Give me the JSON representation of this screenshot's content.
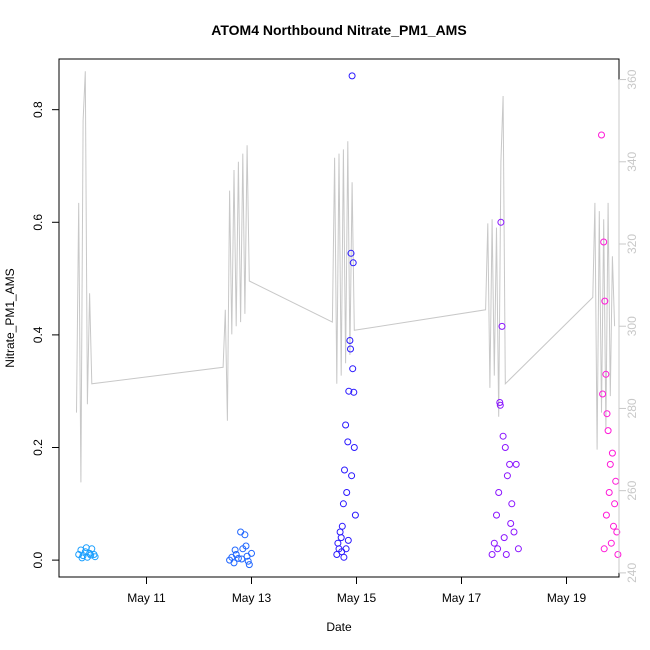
{
  "chart_data": {
    "type": "scatter",
    "title": "ATOM4 Northbound Nitrate_PM1_AMS",
    "xlabel": "Date",
    "ylabel": "Nitrate_PM1_AMS",
    "x_unit": "days",
    "xlim": [
      "2018-05-09T08:00",
      "2018-05-20T00:00"
    ],
    "x_ticks": [
      "May 11",
      "May 13",
      "May 15",
      "May 17",
      "May 19"
    ],
    "x_tick_values": [
      "2018-05-11",
      "2018-05-13",
      "2018-05-15",
      "2018-05-17",
      "2018-05-19"
    ],
    "ylim": [
      -0.03,
      0.89
    ],
    "y_ticks": [
      0.0,
      0.2,
      0.4,
      0.6,
      0.8
    ],
    "y_tick_labels": [
      "0.0",
      "0.2",
      "0.4",
      "0.6",
      "0.8"
    ],
    "y2lim": [
      239,
      365
    ],
    "y2_ticks": [
      240,
      260,
      280,
      300,
      320,
      340,
      360
    ],
    "y2_tick_labels": [
      "240",
      "260",
      "280",
      "300",
      "320",
      "340",
      "360"
    ],
    "grid": false,
    "colors": {
      "flight1": "#1a9fff",
      "flight2": "#1f66ff",
      "flight3": "#2a18ff",
      "flight4": "#8a14ff",
      "flight5": "#ff18d8",
      "secondary_line": "#c8c8c8",
      "secondary_axis": "#c8c8c8"
    },
    "series": [
      {
        "color": "#1a9fff",
        "points": [
          [
            "2018-05-09T17:00",
            0.01
          ],
          [
            "2018-05-09T18:00",
            0.018
          ],
          [
            "2018-05-09T19:00",
            0.008
          ],
          [
            "2018-05-09T20:00",
            0.015
          ],
          [
            "2018-05-09T21:00",
            0.005
          ],
          [
            "2018-05-09T22:00",
            0.012
          ],
          [
            "2018-05-09T23:00",
            0.02
          ],
          [
            "2018-05-10T00:00",
            0.01
          ],
          [
            "2018-05-10T00:30",
            0.006
          ],
          [
            "2018-05-09T18:30",
            0.004
          ],
          [
            "2018-05-09T20:30",
            0.022
          ],
          [
            "2018-05-09T22:30",
            0.009
          ]
        ]
      },
      {
        "color": "#1f66ff",
        "points": [
          [
            "2018-05-12T14:00",
            0.0
          ],
          [
            "2018-05-12T15:00",
            0.005
          ],
          [
            "2018-05-12T16:00",
            -0.005
          ],
          [
            "2018-05-12T17:00",
            0.01
          ],
          [
            "2018-05-12T18:00",
            0.003
          ],
          [
            "2018-05-12T19:00",
            0.05
          ],
          [
            "2018-05-12T20:00",
            0.02
          ],
          [
            "2018-05-12T21:00",
            0.045
          ],
          [
            "2018-05-12T22:00",
            0.007
          ],
          [
            "2018-05-12T23:00",
            -0.008
          ],
          [
            "2018-05-13T00:00",
            0.012
          ],
          [
            "2018-05-12T19:30",
            0.002
          ],
          [
            "2018-05-12T21:30",
            0.025
          ],
          [
            "2018-05-12T16:30",
            0.018
          ],
          [
            "2018-05-12T22:30",
            -0.002
          ]
        ]
      },
      {
        "color": "#2a18ff",
        "points": [
          [
            "2018-05-14T15:00",
            0.01
          ],
          [
            "2018-05-14T15:30",
            0.03
          ],
          [
            "2018-05-14T16:00",
            0.02
          ],
          [
            "2018-05-14T16:30",
            0.05
          ],
          [
            "2018-05-14T17:00",
            0.04
          ],
          [
            "2018-05-14T17:30",
            0.06
          ],
          [
            "2018-05-14T18:00",
            0.1
          ],
          [
            "2018-05-14T18:30",
            0.16
          ],
          [
            "2018-05-14T19:00",
            0.24
          ],
          [
            "2018-05-14T19:30",
            0.12
          ],
          [
            "2018-05-14T20:00",
            0.21
          ],
          [
            "2018-05-14T20:30",
            0.3
          ],
          [
            "2018-05-14T21:00",
            0.39
          ],
          [
            "2018-05-14T21:30",
            0.545
          ],
          [
            "2018-05-14T22:00",
            0.86
          ],
          [
            "2018-05-14T22:30",
            0.528
          ],
          [
            "2018-05-14T21:15",
            0.375
          ],
          [
            "2018-05-14T22:15",
            0.34
          ],
          [
            "2018-05-14T22:45",
            0.298
          ],
          [
            "2018-05-14T23:00",
            0.2
          ],
          [
            "2018-05-14T23:30",
            0.08
          ],
          [
            "2018-05-14T19:15",
            0.02
          ],
          [
            "2018-05-14T20:15",
            0.035
          ],
          [
            "2018-05-14T21:45",
            0.15
          ],
          [
            "2018-05-14T18:15",
            0.005
          ],
          [
            "2018-05-14T17:15",
            0.015
          ]
        ]
      },
      {
        "color": "#8a14ff",
        "points": [
          [
            "2018-05-17T14:00",
            0.01
          ],
          [
            "2018-05-17T15:00",
            0.03
          ],
          [
            "2018-05-17T16:00",
            0.08
          ],
          [
            "2018-05-17T17:00",
            0.12
          ],
          [
            "2018-05-17T18:00",
            0.6
          ],
          [
            "2018-05-17T18:30",
            0.415
          ],
          [
            "2018-05-17T17:30",
            0.28
          ],
          [
            "2018-05-17T17:45",
            0.275
          ],
          [
            "2018-05-17T19:00",
            0.22
          ],
          [
            "2018-05-17T20:00",
            0.2
          ],
          [
            "2018-05-17T21:00",
            0.15
          ],
          [
            "2018-05-17T22:00",
            0.17
          ],
          [
            "2018-05-17T23:00",
            0.1
          ],
          [
            "2018-05-18T00:00",
            0.05
          ],
          [
            "2018-05-18T01:00",
            0.17
          ],
          [
            "2018-05-18T02:00",
            0.02
          ],
          [
            "2018-05-17T19:30",
            0.04
          ],
          [
            "2018-05-17T20:30",
            0.01
          ],
          [
            "2018-05-17T22:30",
            0.065
          ],
          [
            "2018-05-17T16:30",
            0.02
          ]
        ]
      },
      {
        "color": "#ff18d8",
        "points": [
          [
            "2018-05-19T16:00",
            0.755
          ],
          [
            "2018-05-19T17:00",
            0.565
          ],
          [
            "2018-05-19T17:30",
            0.46
          ],
          [
            "2018-05-19T16:30",
            0.295
          ],
          [
            "2018-05-19T18:00",
            0.33
          ],
          [
            "2018-05-19T18:30",
            0.26
          ],
          [
            "2018-05-19T19:00",
            0.23
          ],
          [
            "2018-05-19T20:00",
            0.17
          ],
          [
            "2018-05-19T21:00",
            0.19
          ],
          [
            "2018-05-19T22:00",
            0.1
          ],
          [
            "2018-05-19T23:00",
            0.05
          ],
          [
            "2018-05-19T17:15",
            0.02
          ],
          [
            "2018-05-19T18:15",
            0.08
          ],
          [
            "2018-05-19T19:30",
            0.12
          ],
          [
            "2018-05-19T20:30",
            0.03
          ],
          [
            "2018-05-19T21:30",
            0.06
          ],
          [
            "2018-05-19T22:30",
            0.14
          ],
          [
            "2018-05-19T23:30",
            0.01
          ]
        ]
      }
    ],
    "secondary_series": {
      "type": "line",
      "color": "#c8c8c8",
      "points": [
        [
          "2018-05-09T16:00",
          279
        ],
        [
          "2018-05-09T17:00",
          330
        ],
        [
          "2018-05-09T18:00",
          262
        ],
        [
          "2018-05-09T19:00",
          350
        ],
        [
          "2018-05-09T20:00",
          362
        ],
        [
          "2018-05-09T21:00",
          281
        ],
        [
          "2018-05-09T22:00",
          308
        ],
        [
          "2018-05-09T23:00",
          286
        ],
        [
          "2018-05-12T11:00",
          290
        ],
        [
          "2018-05-12T12:00",
          304
        ],
        [
          "2018-05-12T13:00",
          277
        ],
        [
          "2018-05-12T14:00",
          333
        ],
        [
          "2018-05-12T15:00",
          298
        ],
        [
          "2018-05-12T16:00",
          338
        ],
        [
          "2018-05-12T17:00",
          300
        ],
        [
          "2018-05-12T18:00",
          340
        ],
        [
          "2018-05-12T19:00",
          301
        ],
        [
          "2018-05-12T20:00",
          342
        ],
        [
          "2018-05-12T21:00",
          303
        ],
        [
          "2018-05-12T22:00",
          344
        ],
        [
          "2018-05-12T23:00",
          311
        ],
        [
          "2018-05-14T13:00",
          301
        ],
        [
          "2018-05-14T14:00",
          341
        ],
        [
          "2018-05-14T15:00",
          286
        ],
        [
          "2018-05-14T16:00",
          342
        ],
        [
          "2018-05-14T17:00",
          288
        ],
        [
          "2018-05-14T18:00",
          343
        ],
        [
          "2018-05-14T19:00",
          291
        ],
        [
          "2018-05-14T20:00",
          345
        ],
        [
          "2018-05-14T21:00",
          293
        ],
        [
          "2018-05-14T22:00",
          335
        ],
        [
          "2018-05-14T23:00",
          299
        ],
        [
          "2018-05-17T11:00",
          304
        ],
        [
          "2018-05-17T12:00",
          325
        ],
        [
          "2018-05-17T13:00",
          285
        ],
        [
          "2018-05-17T14:00",
          326
        ],
        [
          "2018-05-17T15:00",
          288
        ],
        [
          "2018-05-17T16:00",
          324
        ],
        [
          "2018-05-17T17:00",
          278
        ],
        [
          "2018-05-17T18:00",
          340
        ],
        [
          "2018-05-17T19:00",
          356
        ],
        [
          "2018-05-17T20:00",
          286
        ],
        [
          "2018-05-19T12:00",
          307
        ],
        [
          "2018-05-19T13:00",
          330
        ],
        [
          "2018-05-19T14:00",
          270
        ],
        [
          "2018-05-19T15:00",
          328
        ],
        [
          "2018-05-19T16:00",
          279
        ],
        [
          "2018-05-19T17:00",
          326
        ],
        [
          "2018-05-19T18:00",
          275
        ],
        [
          "2018-05-19T19:00",
          330
        ],
        [
          "2018-05-19T20:00",
          283
        ],
        [
          "2018-05-19T21:00",
          317
        ],
        [
          "2018-05-19T22:00",
          300
        ]
      ]
    }
  }
}
